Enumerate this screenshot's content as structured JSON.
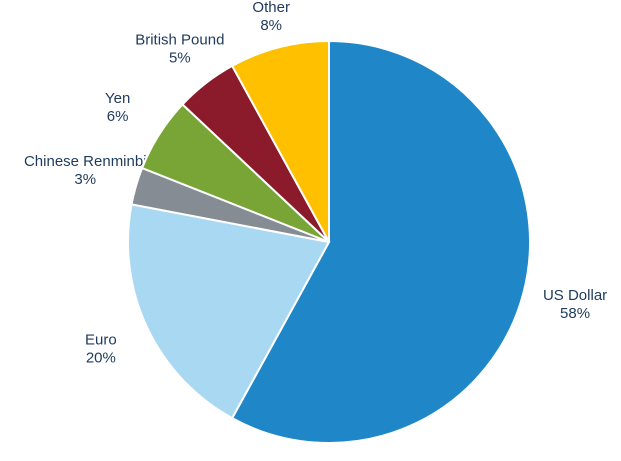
{
  "chart_data": {
    "type": "pie",
    "categories": [
      "US Dollar",
      "Euro",
      "Chinese Renminbi",
      "Yen",
      "British Pound",
      "Other"
    ],
    "values": [
      58,
      20,
      3,
      6,
      5,
      8
    ],
    "value_labels": [
      "58%",
      "20%",
      "3%",
      "6%",
      "5%",
      "8%"
    ],
    "colors": [
      "#1f87c8",
      "#a9d8f2",
      "#858c93",
      "#78a535",
      "#8b1a2b",
      "#ffc000"
    ]
  }
}
